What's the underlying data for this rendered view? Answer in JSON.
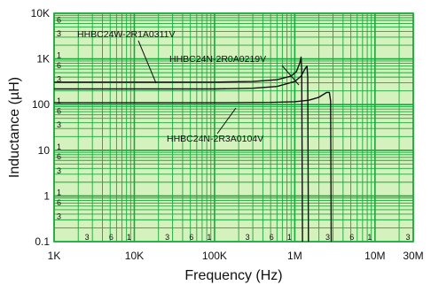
{
  "chart_data": {
    "type": "line",
    "xlabel": "Frequency (Hz)",
    "ylabel": "Inductance (µH)",
    "xscale": "log",
    "yscale": "log",
    "xlim": [
      1000,
      30000000
    ],
    "ylim": [
      0.1,
      10000
    ],
    "x_major_tick_values": [
      1000,
      10000,
      100000,
      1000000,
      10000000,
      30000000
    ],
    "x_major_tick_labels": [
      "1K",
      "10K",
      "100K",
      "1M",
      "10M",
      "30M"
    ],
    "x_minor_tick_values": [
      3000,
      6000,
      10000,
      30000,
      60000,
      100000,
      300000,
      600000,
      1000000,
      3000000,
      6000000,
      10000000,
      30000000
    ],
    "x_minor_tick_labels": [
      "3",
      "6",
      "1",
      "3",
      "6",
      "1",
      "3",
      "6",
      "1",
      "3",
      "6",
      "1",
      "3"
    ],
    "y_major_tick_values": [
      0.1,
      1,
      10,
      100,
      1000,
      10000
    ],
    "y_major_tick_labels": [
      "0.1",
      "1",
      "10",
      "100",
      "1K",
      "10K"
    ],
    "y_minor_tick_values": [
      0.3,
      0.6,
      1,
      3,
      6,
      10,
      30,
      60,
      100,
      300,
      600,
      1000,
      3000,
      6000
    ],
    "y_minor_tick_labels": [
      "3",
      "6",
      "1",
      "3",
      "6",
      "1",
      "3",
      "6",
      "1",
      "3",
      "6",
      "1",
      "3",
      "6"
    ],
    "grid": true,
    "colors": {
      "background": "#d5f1bd",
      "grid": "#19a83c",
      "curve": "#111111",
      "text": "#111111"
    },
    "series": [
      {
        "name": "HHBC24W-2R1A0311V",
        "x": [
          1000,
          10000,
          100000,
          300000,
          600000,
          900000,
          1050000,
          1150000,
          1200000,
          1220000,
          1250000
        ],
        "y": [
          310,
          310,
          310,
          320,
          350,
          420,
          530,
          800,
          1100,
          600,
          0.1
        ]
      },
      {
        "name": "HHBC24N-2R0A0219V",
        "x": [
          1000,
          10000,
          100000,
          300000,
          600000,
          1000000,
          1200000,
          1350000,
          1420000,
          1450000,
          1480000
        ],
        "y": [
          220,
          220,
          220,
          228,
          250,
          320,
          420,
          620,
          700,
          400,
          0.1
        ]
      },
      {
        "name": "HHBC24N-2R3A0104V",
        "x": [
          1000,
          10000,
          100000,
          500000,
          1000000,
          1500000,
          2000000,
          2500000,
          2700000,
          2800000,
          2850000
        ],
        "y": [
          110,
          110,
          110,
          112,
          116,
          125,
          145,
          185,
          185,
          120,
          0.1
        ]
      }
    ],
    "annotations": [
      "HHBC24W-2R1A0311V",
      "HHBC24N-2R0A0219V",
      "HHBC24N-2R3A0104V"
    ]
  }
}
